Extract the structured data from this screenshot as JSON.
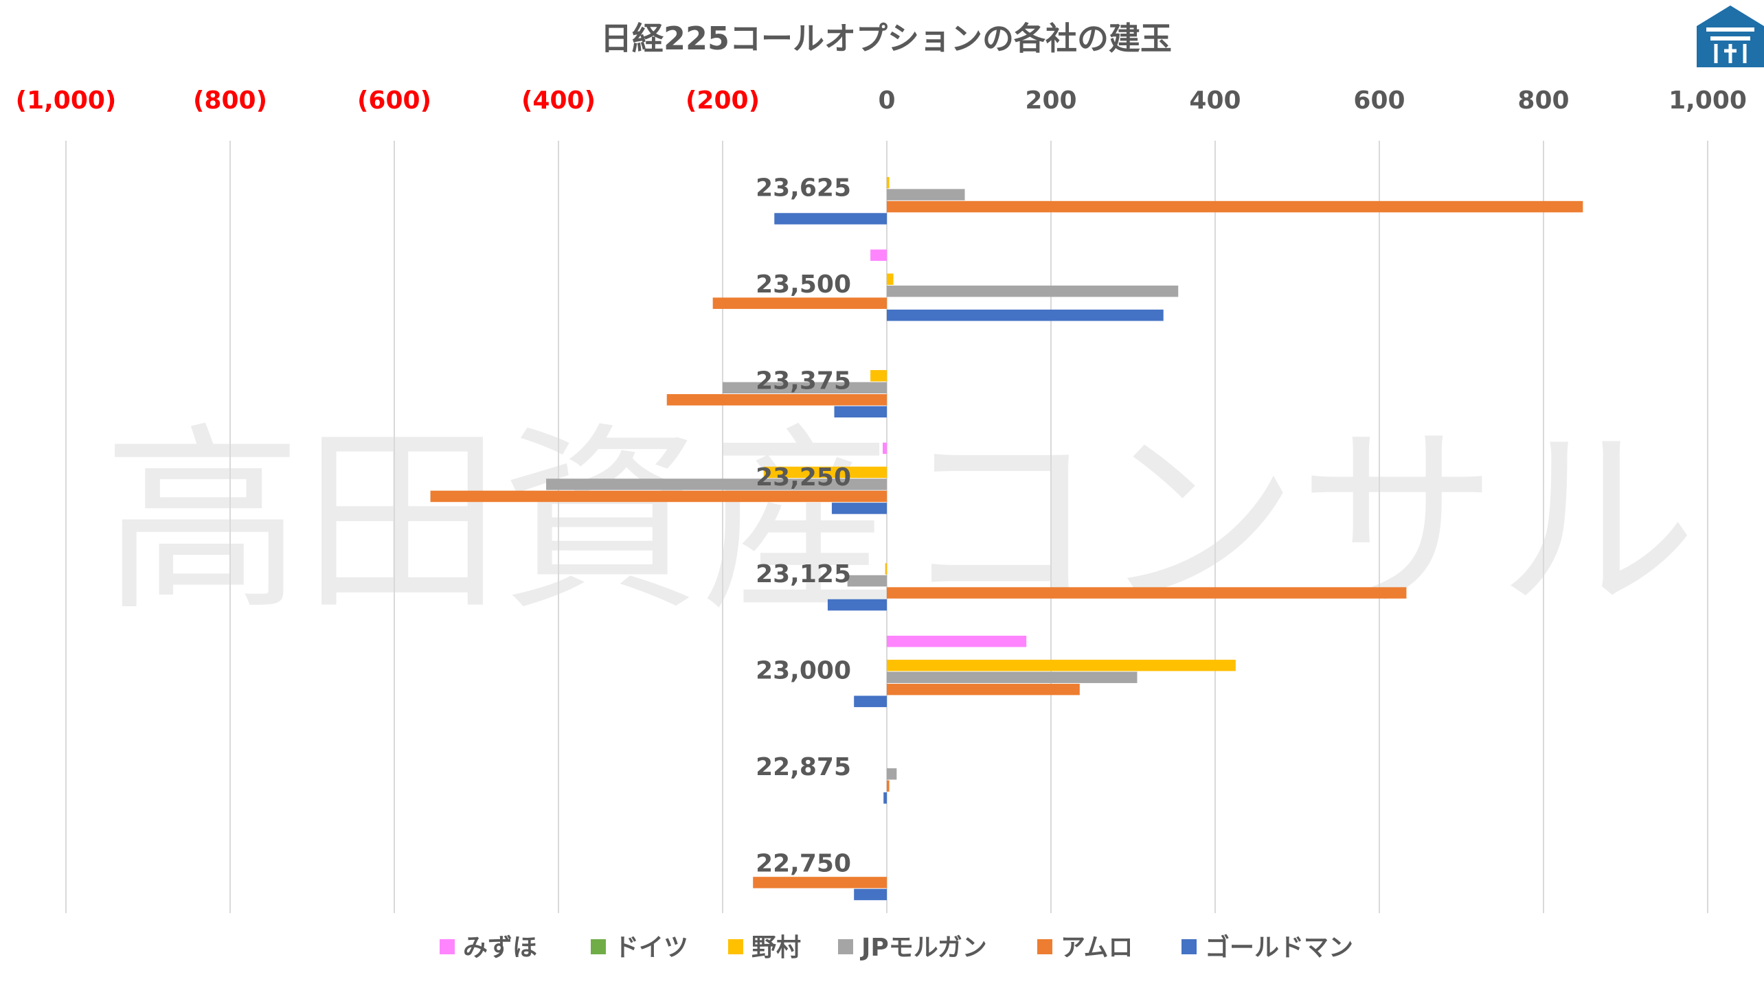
{
  "chart_data": {
    "type": "bar",
    "orientation": "horizontal",
    "title": "日経225コールオプションの各社の建玉",
    "xlim": [
      -1000,
      1000
    ],
    "x_ticks": [
      -1000,
      -800,
      -600,
      -400,
      -200,
      0,
      200,
      400,
      600,
      800,
      1000
    ],
    "x_tick_labels": [
      "(1,000)",
      "(800)",
      "(600)",
      "(400)",
      "(200)",
      "0",
      "200",
      "400",
      "600",
      "800",
      "1,000"
    ],
    "negative_tick_color": "#FF0000",
    "positive_tick_color": "#595959",
    "axis_position": "top",
    "grid": true,
    "legend_position": "bottom",
    "categories": [
      "23,625",
      "23,500",
      "23,375",
      "23,250",
      "23,125",
      "23,000",
      "22,875",
      "22,750"
    ],
    "series": [
      {
        "name": "みずほ",
        "color": "#FF85FF",
        "values": [
          0,
          -20,
          0,
          -5,
          0,
          170,
          0,
          0
        ]
      },
      {
        "name": "ドイツ",
        "color": "#70AD47",
        "values": [
          0,
          0,
          0,
          0,
          0,
          0,
          0,
          0
        ]
      },
      {
        "name": "野村",
        "color": "#FFC000",
        "values": [
          3,
          8,
          -20,
          -150,
          -2,
          425,
          0,
          0
        ]
      },
      {
        "name": "JPモルガン",
        "color": "#A5A5A5",
        "values": [
          95,
          355,
          -200,
          -415,
          -48,
          305,
          12,
          0
        ]
      },
      {
        "name": "アムロ",
        "color": "#ED7D31",
        "values": [
          848,
          -212,
          -268,
          -556,
          633,
          235,
          3,
          -163
        ]
      },
      {
        "name": "ゴールドマン",
        "color": "#4472C4",
        "values": [
          -137,
          337,
          -64,
          -67,
          -72,
          -40,
          -4,
          -40
        ]
      }
    ]
  },
  "watermark": "高田資産コンサル",
  "logo": {
    "name": "shield-logo",
    "color": "#1F6FA8"
  }
}
